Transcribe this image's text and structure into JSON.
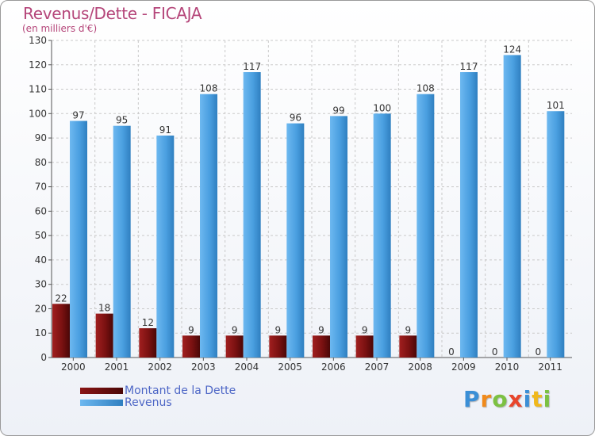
{
  "header": {
    "title": "Revenus/Dette - FICAJA",
    "subtitle": "(en milliers d'€)"
  },
  "colors": {
    "title": "#b5467a",
    "dette": "#7a1616",
    "revenus": "#4a9fe0",
    "legend_text": "#4d66c6",
    "grid": "#c8c8c8"
  },
  "legend": {
    "items": [
      {
        "label": "Montant de la Dette",
        "color": "#6b0d0d"
      },
      {
        "label": "Revenus",
        "color": "#4a9fe0"
      }
    ]
  },
  "logo": {
    "letters": [
      {
        "ch": "P",
        "color": "#3b8fd6"
      },
      {
        "ch": "r",
        "color": "#f08a1c"
      },
      {
        "ch": "o",
        "color": "#7cc142"
      },
      {
        "ch": "x",
        "color": "#e8452c"
      },
      {
        "ch": "i",
        "color": "#3b8fd6"
      },
      {
        "ch": "t",
        "color": "#f0b81c"
      },
      {
        "ch": "i",
        "color": "#7cc142"
      }
    ]
  },
  "chart_data": {
    "type": "bar",
    "title": "Revenus/Dette - FICAJA",
    "subtitle": "(en milliers d'€)",
    "categories": [
      "2000",
      "2001",
      "2002",
      "2003",
      "2004",
      "2005",
      "2006",
      "2007",
      "2008",
      "2009",
      "2010",
      "2011"
    ],
    "series": [
      {
        "name": "Montant de la Dette",
        "values": [
          22,
          18,
          12,
          9,
          9,
          9,
          9,
          9,
          9,
          0,
          0,
          0
        ]
      },
      {
        "name": "Revenus",
        "values": [
          97,
          95,
          91,
          108,
          117,
          96,
          99,
          100,
          108,
          117,
          124,
          101
        ]
      }
    ],
    "ylim": [
      0,
      130
    ],
    "yticks": [
      0,
      10,
      20,
      30,
      40,
      50,
      60,
      70,
      80,
      90,
      100,
      110,
      120,
      130
    ],
    "grid": true,
    "legend_position": "bottom-left"
  }
}
